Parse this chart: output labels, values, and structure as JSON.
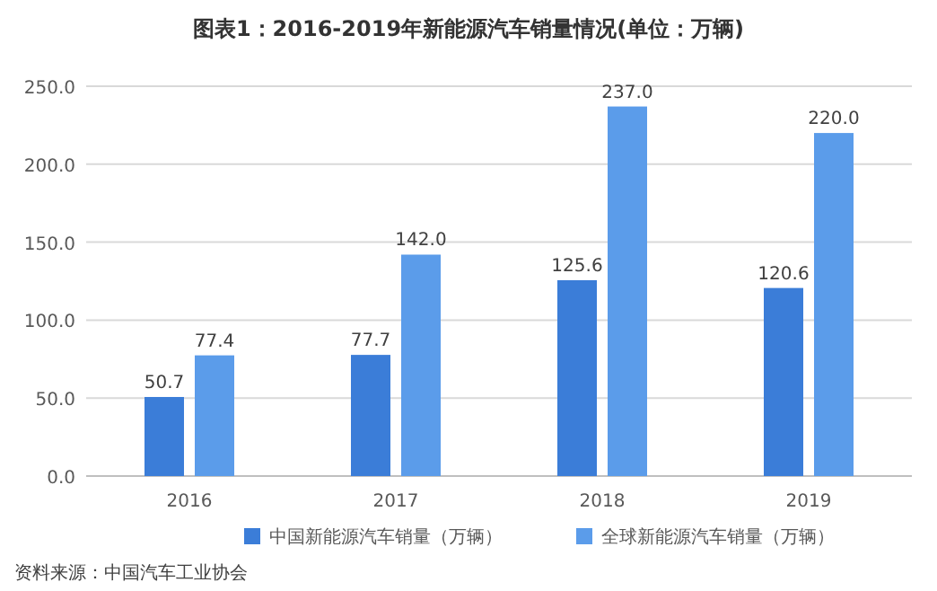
{
  "chart_data": {
    "type": "bar",
    "title": "图表1：2016-2019年新能源汽车销量情况(单位：万辆)",
    "categories": [
      "2016",
      "2017",
      "2018",
      "2019"
    ],
    "series": [
      {
        "name": "中国新能源汽车销量（万辆）",
        "color": "#3b7dd8",
        "values": [
          50.7,
          77.7,
          125.6,
          120.6
        ],
        "value_labels": [
          "50.7",
          "77.7",
          "125.6",
          "120.6"
        ]
      },
      {
        "name": "全球新能源汽车销量（万辆）",
        "color": "#5b9cea",
        "values": [
          77.4,
          142.0,
          237.0,
          220.0
        ],
        "value_labels": [
          "77.4",
          "142.0",
          "237.0",
          "220.0"
        ]
      }
    ],
    "ylim": [
      0,
      250
    ],
    "yticks": [
      {
        "value": 0,
        "label": "0.0"
      },
      {
        "value": 50,
        "label": "50.0"
      },
      {
        "value": 100,
        "label": "100.0"
      },
      {
        "value": 150,
        "label": "150.0"
      },
      {
        "value": 200,
        "label": "200.0"
      },
      {
        "value": 250,
        "label": "250.0"
      }
    ],
    "grid": "y",
    "legend": "bottom",
    "annotations": [
      "资料来源：中国汽车工业协会"
    ]
  }
}
